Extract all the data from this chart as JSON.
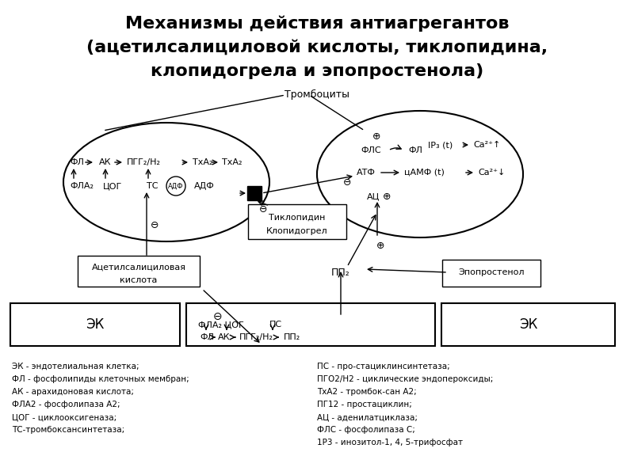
{
  "title_line1": "Механизмы действия антиагрегантов",
  "title_line2": "(ацетилсалициловой кислоты, тиклопидина,",
  "title_line3": "клопидогрела и эпопростенола)",
  "bg_color": "#ffffff",
  "legend_left": [
    "ЭК - эндотелиальная клетка;",
    "ФЛ - фосфолипиды клеточных мембран;",
    "АК - арахидоновая кислота;",
    "ФЛА2 - фосфолипаза А2;",
    "ЦОГ - циклооксигеназа;",
    "ТС-тромбоксансинтетаза;"
  ],
  "legend_right": [
    "ПС - про-стациклинсинтетаза;",
    "ПГО2/Н2 - циклические эндопероксиды;",
    "ТхА2 - тромбок-сан А2;",
    "ПГ12 - простациклин;",
    "АЦ - аденилатциклаза;",
    "ФЛС - фосфолипаза С;",
    "1Р3 - инозитол-1, 4, 5-трифосфат"
  ]
}
